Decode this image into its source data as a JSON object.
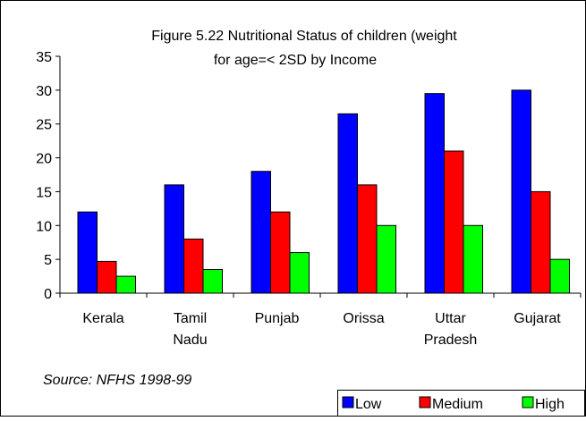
{
  "chart_data": {
    "type": "bar",
    "title": [
      "Figure 5.22 Nutritional Status of children (weight",
      "for age=< 2SD  by Income"
    ],
    "categories": [
      "Kerala",
      "Tamil Nadu",
      "Punjab",
      "Orissa",
      "Uttar Pradesh",
      "Gujarat"
    ],
    "series": [
      {
        "name": "Low",
        "color": "#0000ff",
        "values": [
          12,
          16,
          18,
          26.5,
          29.5,
          30
        ]
      },
      {
        "name": "Medium",
        "color": "#ff0000",
        "values": [
          4.7,
          8,
          12,
          16,
          21,
          15
        ]
      },
      {
        "name": "High",
        "color": "#00ff00",
        "values": [
          2.5,
          3.5,
          6,
          10,
          10,
          5
        ]
      }
    ],
    "ylim": [
      0,
      35
    ],
    "yticks": [
      0,
      5,
      10,
      15,
      20,
      25,
      30,
      35
    ],
    "annotation": "Source: NFHS 1998-99",
    "legend": "bottom-right"
  }
}
